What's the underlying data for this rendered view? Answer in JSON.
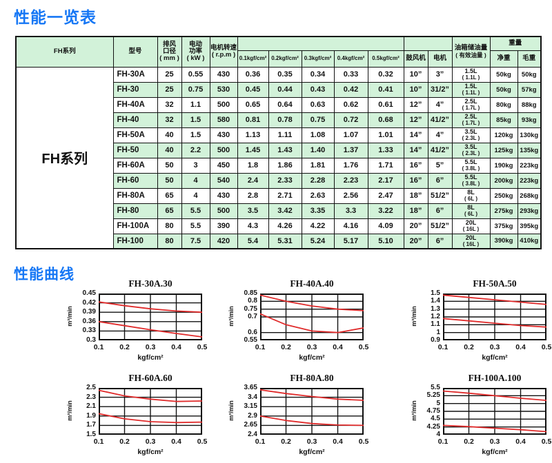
{
  "page": {
    "title": "性能一览表",
    "curves_title": "性能曲线"
  },
  "table": {
    "headers": {
      "series": "FH系列",
      "model": "型号",
      "outlet1": "排风",
      "outlet2": "口径",
      "outlet3": "( mm )",
      "power1": "电动",
      "power2": "功率",
      "power3": "( kW )",
      "speed1": "电机转速",
      "speed2": "( r.p.m )",
      "pressures": [
        "0.1kgf/cm²",
        "0.2kgf/cm²",
        "0.3kgf/cm²",
        "0.4kgf/cm²",
        "0.5kgf/cm²"
      ],
      "blower": "鼓风机",
      "motor": "电机",
      "oil1": "油箱储油量",
      "oil2": "( 有效油量 )",
      "weight": "重量",
      "net": "净重",
      "gross": "毛重"
    },
    "series_label": "FH系列",
    "rows": [
      {
        "model": "FH-30A",
        "outlet": "25",
        "power": "0.55",
        "speed": "430",
        "p": [
          "0.36",
          "0.35",
          "0.34",
          "0.33",
          "0.32"
        ],
        "blower": "10”",
        "motor": "3”",
        "oil": "1.5L",
        "oil2": "( 1.1L )",
        "net": "50kg",
        "gross": "50kg"
      },
      {
        "model": "FH-30",
        "outlet": "25",
        "power": "0.75",
        "speed": "530",
        "p": [
          "0.45",
          "0.44",
          "0.43",
          "0.42",
          "0.41"
        ],
        "blower": "10”",
        "motor": "31/2”",
        "oil": "1.5L",
        "oil2": "( 1.1L )",
        "net": "50kg",
        "gross": "57kg"
      },
      {
        "model": "FH-40A",
        "outlet": "32",
        "power": "1.1",
        "speed": "500",
        "p": [
          "0.65",
          "0.64",
          "0.63",
          "0.62",
          "0.61"
        ],
        "blower": "12”",
        "motor": "4”",
        "oil": "2.5L",
        "oil2": "( 1.7L )",
        "net": "80kg",
        "gross": "88kg"
      },
      {
        "model": "FH-40",
        "outlet": "32",
        "power": "1.5",
        "speed": "580",
        "p": [
          "0.81",
          "0.78",
          "0.75",
          "0.72",
          "0.68"
        ],
        "blower": "12”",
        "motor": "41/2”",
        "oil": "2.5L",
        "oil2": "( 1.7L )",
        "net": "85kg",
        "gross": "93kg"
      },
      {
        "model": "FH-50A",
        "outlet": "40",
        "power": "1.5",
        "speed": "430",
        "p": [
          "1.13",
          "1.11",
          "1.08",
          "1.07",
          "1.01"
        ],
        "blower": "14”",
        "motor": "4”",
        "oil": "3.5L",
        "oil2": "( 2.3L )",
        "net": "120kg",
        "gross": "130kg"
      },
      {
        "model": "FH-50",
        "outlet": "40",
        "power": "2.2",
        "speed": "500",
        "p": [
          "1.45",
          "1.43",
          "1.40",
          "1.37",
          "1.33"
        ],
        "blower": "14”",
        "motor": "41/2”",
        "oil": "3.5L",
        "oil2": "( 2.3L )",
        "net": "125kg",
        "gross": "135kg"
      },
      {
        "model": "FH-60A",
        "outlet": "50",
        "power": "3",
        "speed": "450",
        "p": [
          "1.8",
          "1.86",
          "1.81",
          "1.76",
          "1.71"
        ],
        "blower": "16”",
        "motor": "5”",
        "oil": "5.5L",
        "oil2": "( 3.8L )",
        "net": "190kg",
        "gross": "223kg"
      },
      {
        "model": "FH-60",
        "outlet": "50",
        "power": "4",
        "speed": "540",
        "p": [
          "2.4",
          "2.33",
          "2.28",
          "2.23",
          "2.17"
        ],
        "blower": "16”",
        "motor": "6”",
        "oil": "5.5L",
        "oil2": "( 3.8L )",
        "net": "200kg",
        "gross": "223kg"
      },
      {
        "model": "FH-80A",
        "outlet": "65",
        "power": "4",
        "speed": "430",
        "p": [
          "2.8",
          "2.71",
          "2.63",
          "2.56",
          "2.47"
        ],
        "blower": "18”",
        "motor": "51/2”",
        "oil": "8L",
        "oil2": "( 6L )",
        "net": "250kg",
        "gross": "268kg"
      },
      {
        "model": "FH-80",
        "outlet": "65",
        "power": "5.5",
        "speed": "500",
        "p": [
          "3.5",
          "3.42",
          "3.35",
          "3.3",
          "3.22"
        ],
        "blower": "18”",
        "motor": "6”",
        "oil": "8L",
        "oil2": "( 6L )",
        "net": "275kg",
        "gross": "293kg"
      },
      {
        "model": "FH-100A",
        "outlet": "80",
        "power": "5.5",
        "speed": "390",
        "p": [
          "4.3",
          "4.26",
          "4.22",
          "4.16",
          "4.09"
        ],
        "blower": "20”",
        "motor": "51/2”",
        "oil": "20L",
        "oil2": "( 16L )",
        "net": "375kg",
        "gross": "395kg"
      },
      {
        "model": "FH-100",
        "outlet": "80",
        "power": "7.5",
        "speed": "420",
        "p": [
          "5.4",
          "5.31",
          "5.24",
          "5.17",
          "5.10"
        ],
        "blower": "20”",
        "motor": "6”",
        "oil": "20L",
        "oil2": "( 16L )",
        "net": "390kg",
        "gross": "410kg"
      }
    ]
  },
  "chart_data": [
    {
      "type": "line",
      "title": "FH-30A.30",
      "ylabel": "m³/min",
      "xlabel": "kgf/cm²",
      "ylim": [
        0.3,
        0.45
      ],
      "yticks": [
        "0.45",
        "0.42",
        "0.39",
        "0.36",
        "0.33",
        "0.3"
      ],
      "xticks": [
        "0.1",
        "0.2",
        "0.3",
        "0.4",
        "0.5"
      ],
      "x": [
        0.1,
        0.2,
        0.3,
        0.4,
        0.5
      ],
      "series": [
        {
          "name": "FH-30",
          "values": [
            0.423,
            0.411,
            0.401,
            0.394,
            0.39
          ]
        },
        {
          "name": "FH-30A",
          "values": [
            0.36,
            0.347,
            0.334,
            0.322,
            0.311
          ]
        }
      ]
    },
    {
      "type": "line",
      "title": "FH-40A.40",
      "ylabel": "m³/min",
      "xlabel": "kgf/cm²",
      "ylim": [
        0.55,
        0.85
      ],
      "yticks": [
        "0.85",
        "0.8",
        "0.75",
        "0.7",
        "0.6",
        "0.55"
      ],
      "xticks": [
        "0.1",
        "0.2",
        "0.3",
        "0.4",
        "0.5"
      ],
      "x": [
        0.1,
        0.2,
        0.3,
        0.4,
        0.5
      ],
      "series": [
        {
          "name": "FH-40",
          "values": [
            0.84,
            0.8,
            0.77,
            0.75,
            0.74
          ]
        },
        {
          "name": "FH-40A",
          "values": [
            0.72,
            0.65,
            0.61,
            0.6,
            0.63
          ]
        }
      ]
    },
    {
      "type": "line",
      "title": "FH-50A.50",
      "ylabel": "m³/min",
      "xlabel": "kgf/cm²",
      "ylim": [
        0.9,
        1.5
      ],
      "yticks": [
        "1.5",
        "1.4",
        "1.3",
        "1.2",
        "1.1",
        "1",
        "0.9"
      ],
      "xticks": [
        "0.1",
        "0.2",
        "0.3",
        "0.4",
        "0.5"
      ],
      "x": [
        0.1,
        0.2,
        0.3,
        0.4,
        0.5
      ],
      "series": [
        {
          "name": "FH-50",
          "values": [
            1.48,
            1.45,
            1.42,
            1.39,
            1.36
          ]
        },
        {
          "name": "FH-50A",
          "values": [
            1.18,
            1.15,
            1.12,
            1.09,
            1.07
          ]
        }
      ]
    },
    {
      "type": "line",
      "title": "FH-60A.60",
      "ylabel": "m³/min",
      "xlabel": "kgf/cm²",
      "ylim": [
        1.5,
        2.5
      ],
      "yticks": [
        "2.5",
        "2.3",
        "2.1",
        "1.9",
        "1.7",
        "1.5"
      ],
      "xticks": [
        "0.1",
        "0.2",
        "0.3",
        "0.4",
        "0.5"
      ],
      "x": [
        0.1,
        0.2,
        0.3,
        0.4,
        0.5
      ],
      "series": [
        {
          "name": "FH-60",
          "values": [
            2.45,
            2.33,
            2.26,
            2.21,
            2.22
          ]
        },
        {
          "name": "FH-60A",
          "values": [
            1.95,
            1.84,
            1.78,
            1.76,
            1.77
          ]
        }
      ]
    },
    {
      "type": "line",
      "title": "FH-80A.80",
      "ylabel": "m³/min",
      "xlabel": "kgf/cm²",
      "ylim": [
        2.4,
        3.65
      ],
      "yticks": [
        "3.65",
        "3.4",
        "3.15",
        "2.9",
        "2.65",
        "2.4"
      ],
      "xticks": [
        "0.1",
        "0.2",
        "0.3",
        "0.4",
        "0.5"
      ],
      "x": [
        0.1,
        0.2,
        0.3,
        0.4,
        0.5
      ],
      "series": [
        {
          "name": "FH-80",
          "values": [
            3.6,
            3.5,
            3.42,
            3.35,
            3.32
          ]
        },
        {
          "name": "FH-80A",
          "values": [
            2.9,
            2.78,
            2.7,
            2.66,
            2.65
          ]
        }
      ]
    },
    {
      "type": "line",
      "title": "FH-100A.100",
      "ylabel": "m³/min",
      "xlabel": "kgf/cm²",
      "ylim": [
        4,
        5.5
      ],
      "yticks": [
        "5.5",
        "5.25",
        "5",
        "4.75",
        "4.5",
        "4.25",
        "4"
      ],
      "xticks": [
        "0.1",
        "0.2",
        "0.3",
        "0.4",
        "0.5"
      ],
      "x": [
        0.1,
        0.2,
        0.3,
        0.4,
        0.5
      ],
      "series": [
        {
          "name": "FH-100",
          "values": [
            5.4,
            5.33,
            5.25,
            5.17,
            5.1
          ]
        },
        {
          "name": "FH-100A",
          "values": [
            4.3,
            4.26,
            4.21,
            4.16,
            4.1
          ]
        }
      ]
    }
  ],
  "style": {
    "accent_blue": "#1677f5",
    "row_green": "#d2f2d9",
    "curve_red": "#e02b2b"
  }
}
